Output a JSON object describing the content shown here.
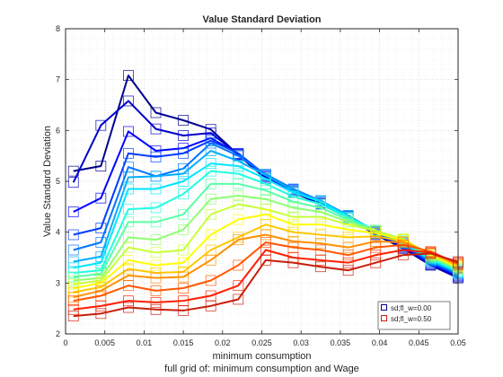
{
  "chart_data": {
    "type": "line",
    "title": "Value Standard Deviation",
    "xlabel": "minimum consumption",
    "ylabel": "Value Standard Deviation",
    "subcaption": "full grid of: minimum consumption and Wage",
    "xlim": [
      0,
      0.05
    ],
    "ylim": [
      2,
      8
    ],
    "xticks": [
      0,
      0.005,
      0.01,
      0.015,
      0.02,
      0.025,
      0.03,
      0.035,
      0.04,
      0.045,
      0.05
    ],
    "xtick_labels": [
      "0",
      "0.005",
      "0.01",
      "0.015",
      "0.02",
      "0.025",
      "0.03",
      "0.035",
      "0.04",
      "0.045",
      "0.05"
    ],
    "yticks": [
      2,
      3,
      4,
      5,
      6,
      7,
      8
    ],
    "ytick_labels": [
      "2",
      "3",
      "4",
      "5",
      "6",
      "7",
      "8"
    ],
    "grid": "on (dotted major and minor)",
    "legend_position": "bottom-right",
    "colormap": "jet",
    "x": [
      0.001,
      0.0045,
      0.008,
      0.0115,
      0.015,
      0.0185,
      0.022,
      0.0255,
      0.029,
      0.0325,
      0.036,
      0.0395,
      0.043,
      0.0465,
      0.05
    ],
    "series": [
      {
        "name": "sd;fl_w=0.00",
        "color": "#00008f",
        "values": [
          5.2,
          5.3,
          7.08,
          6.35,
          6.2,
          6.02,
          5.52,
          5.05,
          4.78,
          4.55,
          4.28,
          3.95,
          3.68,
          3.35,
          3.1
        ]
      },
      {
        "values": [
          4.98,
          6.1,
          6.58,
          6.03,
          5.9,
          5.95,
          5.53,
          5.08,
          4.8,
          4.56,
          4.3,
          3.97,
          3.7,
          3.36,
          3.12
        ]
      },
      {
        "values": [
          4.4,
          4.67,
          5.98,
          5.6,
          5.65,
          5.85,
          5.54,
          5.1,
          4.82,
          4.58,
          4.31,
          3.98,
          3.72,
          3.38,
          3.14
        ]
      },
      {
        "values": [
          3.95,
          4.08,
          5.55,
          5.48,
          5.55,
          5.8,
          5.55,
          5.12,
          4.84,
          4.6,
          4.32,
          4.0,
          3.74,
          3.4,
          3.16
        ]
      },
      {
        "values": [
          3.65,
          3.8,
          5.28,
          5.1,
          5.25,
          5.75,
          5.5,
          5.14,
          4.85,
          4.62,
          4.33,
          4.01,
          3.76,
          3.42,
          3.18
        ]
      },
      {
        "values": [
          3.42,
          3.52,
          5.08,
          5.1,
          5.15,
          5.6,
          5.4,
          5.12,
          4.82,
          4.62,
          4.32,
          4.02,
          3.78,
          3.44,
          3.2
        ]
      },
      {
        "values": [
          3.3,
          3.4,
          4.85,
          4.85,
          5.0,
          5.35,
          5.3,
          5.05,
          4.78,
          4.6,
          4.3,
          4.03,
          3.8,
          3.46,
          3.22
        ]
      },
      {
        "values": [
          3.2,
          3.25,
          4.45,
          4.48,
          4.75,
          5.2,
          5.15,
          4.95,
          4.7,
          4.55,
          4.28,
          4.04,
          3.82,
          3.48,
          3.24
        ]
      },
      {
        "values": [
          3.12,
          3.18,
          4.2,
          4.2,
          4.35,
          4.95,
          4.95,
          4.82,
          4.6,
          4.48,
          4.24,
          4.04,
          3.84,
          3.5,
          3.26
        ]
      },
      {
        "values": [
          3.05,
          3.1,
          3.9,
          3.85,
          4.05,
          4.65,
          4.72,
          4.65,
          4.48,
          4.4,
          4.2,
          4.03,
          3.86,
          3.52,
          3.28
        ]
      },
      {
        "values": [
          2.98,
          3.05,
          3.7,
          3.6,
          3.65,
          4.35,
          4.55,
          4.45,
          4.3,
          4.3,
          4.15,
          4.02,
          3.87,
          3.54,
          3.3
        ]
      },
      {
        "values": [
          2.9,
          3.0,
          3.45,
          3.35,
          3.4,
          3.95,
          4.25,
          4.35,
          4.15,
          4.15,
          4.05,
          3.98,
          3.85,
          3.56,
          3.32
        ]
      },
      {
        "values": [
          2.82,
          2.92,
          3.28,
          3.2,
          3.22,
          3.65,
          3.9,
          4.15,
          4.0,
          3.95,
          3.9,
          3.92,
          3.82,
          3.58,
          3.34
        ]
      },
      {
        "values": [
          2.72,
          2.85,
          3.15,
          3.1,
          3.12,
          3.45,
          3.85,
          3.95,
          3.82,
          3.78,
          3.7,
          3.82,
          3.8,
          3.6,
          3.36
        ]
      },
      {
        "values": [
          2.65,
          2.75,
          2.95,
          2.85,
          2.9,
          3.05,
          3.35,
          3.8,
          3.7,
          3.65,
          3.55,
          3.7,
          3.75,
          3.62,
          3.38
        ]
      },
      {
        "values": [
          2.48,
          2.55,
          2.65,
          2.62,
          2.65,
          2.75,
          2.95,
          3.65,
          3.5,
          3.45,
          3.4,
          3.55,
          3.65,
          3.6,
          3.4
        ]
      },
      {
        "name": "sd;fl_w=0.50",
        "color": "#c81e0a",
        "values": [
          2.35,
          2.4,
          2.52,
          2.48,
          2.46,
          2.55,
          2.68,
          3.45,
          3.4,
          3.32,
          3.25,
          3.4,
          3.55,
          3.58,
          3.42
        ]
      }
    ]
  },
  "legend": {
    "entries": [
      {
        "label": "sd;fl_w=0.00",
        "color": "#00008f"
      },
      {
        "label": "sd;fl_w=0.50",
        "color": "#c81e0a"
      }
    ]
  }
}
